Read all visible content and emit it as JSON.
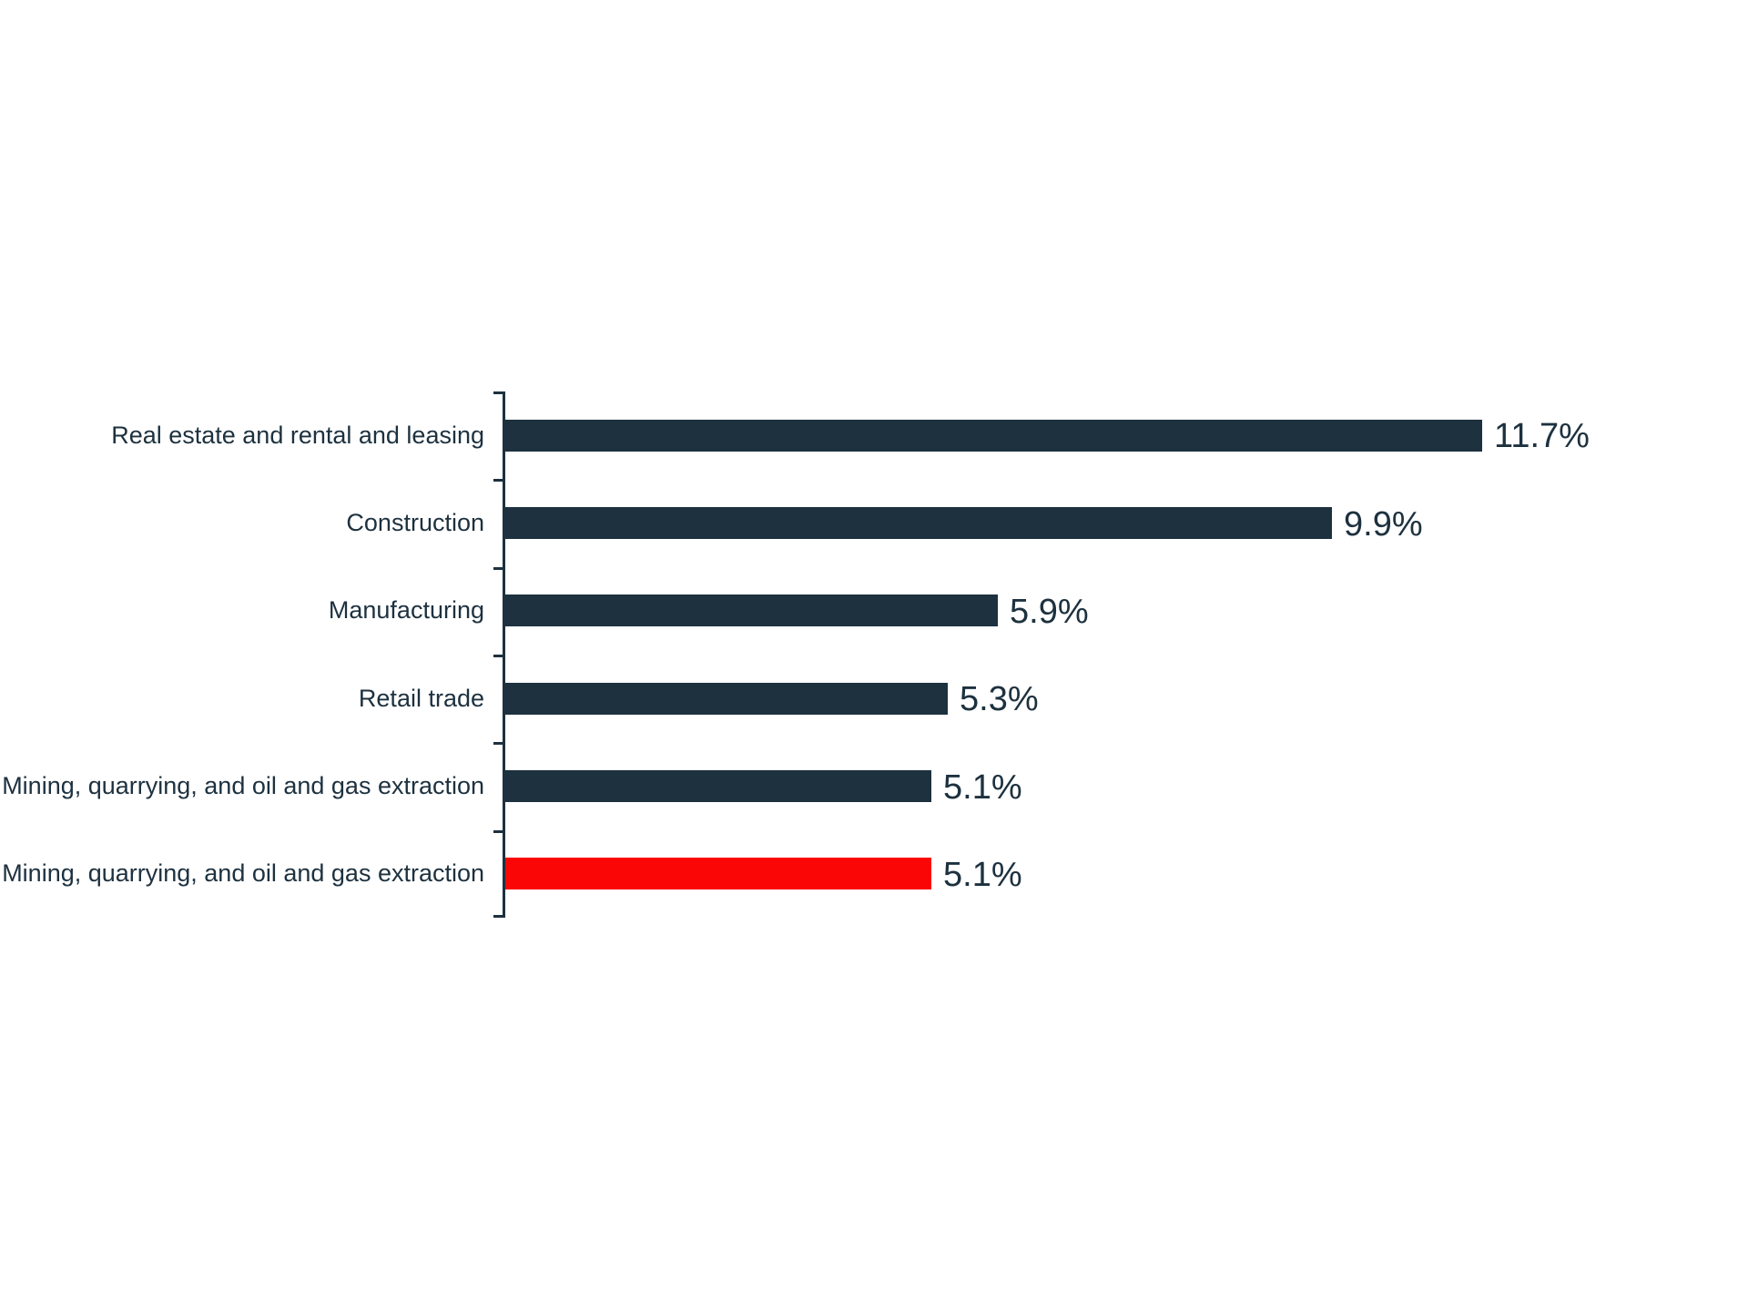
{
  "chart_data": {
    "type": "bar",
    "orientation": "horizontal",
    "title": "",
    "xlabel": "",
    "ylabel": "",
    "grid": false,
    "legend": false,
    "xlim": [
      0,
      11.7
    ],
    "categories": [
      "Real estate and rental and leasing",
      "Construction",
      "Manufacturing",
      "Retail trade",
      "Mining, quarrying, and oil and gas extraction",
      "Mining, quarrying, and oil and gas extraction"
    ],
    "values": [
      11.7,
      9.9,
      5.9,
      5.3,
      5.1,
      5.1
    ],
    "value_labels": [
      "11.7%",
      "9.9%",
      "5.9%",
      "5.3%",
      "5.1%",
      "5.1%"
    ],
    "highlight_index": 5,
    "colors": {
      "bar": "#1d313f",
      "highlight_bar": "#fa0606",
      "axis": "#1d313f",
      "category_text": "#1d313f",
      "value_text": "#1d313f",
      "background": "#ffffff"
    }
  }
}
